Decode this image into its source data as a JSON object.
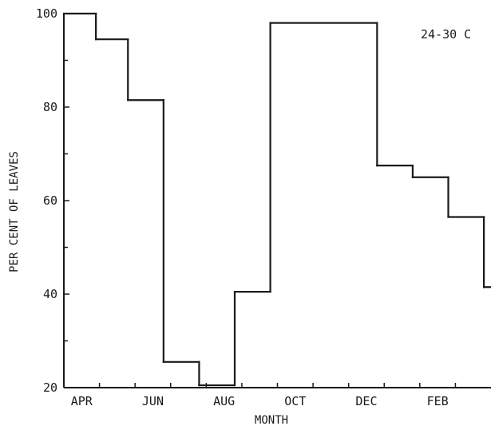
{
  "chart_data": {
    "type": "line",
    "step": true,
    "ylabel": "PER CENT OF LEAVES",
    "xlabel": "MONTH",
    "annotation": "24-30 C",
    "ylim": [
      20,
      100
    ],
    "yticks": [
      20,
      40,
      60,
      80,
      100
    ],
    "xlim": [
      0,
      12
    ],
    "xticks": [
      {
        "label": "APR",
        "x": 0.5
      },
      {
        "label": "JUN",
        "x": 2.5
      },
      {
        "label": "AUG",
        "x": 4.5
      },
      {
        "label": "OCT",
        "x": 6.5
      },
      {
        "label": "DEC",
        "x": 8.5
      },
      {
        "label": "FEB",
        "x": 10.5
      }
    ],
    "steps": [
      {
        "x0": 0,
        "x1": 0.9,
        "y": 100
      },
      {
        "x0": 0.9,
        "x1": 1.8,
        "y": 94.5
      },
      {
        "x0": 1.8,
        "x1": 2.8,
        "y": 81.5
      },
      {
        "x0": 2.8,
        "x1": 3.8,
        "y": 25.5
      },
      {
        "x0": 3.8,
        "x1": 4.8,
        "y": 20.5
      },
      {
        "x0": 4.8,
        "x1": 5.8,
        "y": 40.5
      },
      {
        "x0": 5.8,
        "x1": 8.8,
        "y": 98
      },
      {
        "x0": 8.8,
        "x1": 9.8,
        "y": 67.5
      },
      {
        "x0": 9.8,
        "x1": 10.8,
        "y": 65
      },
      {
        "x0": 10.8,
        "x1": 11.8,
        "y": 56.5
      },
      {
        "x0": 11.8,
        "x1": 12,
        "y": 41.5
      }
    ],
    "grid": false,
    "legend": "none",
    "colors": {
      "line": "#1a1a1a",
      "axis": "#1a1a1a"
    }
  }
}
